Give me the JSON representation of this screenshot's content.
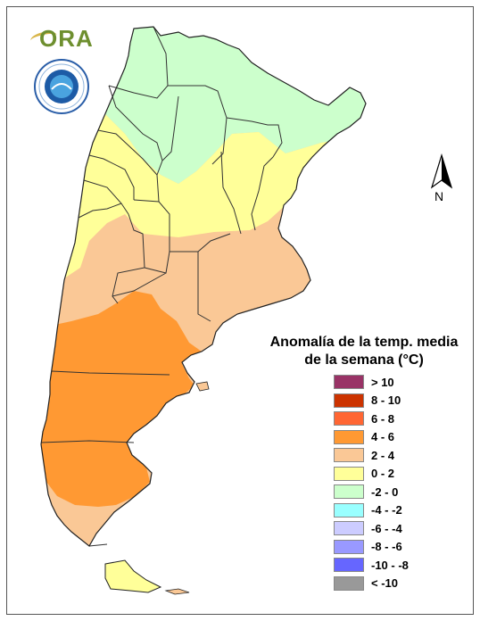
{
  "logo": {
    "text": "ORA"
  },
  "seal": {
    "text": "SERVICIO METEOROLÓGICO NACIONAL • ARGENTINA"
  },
  "north_arrow": {
    "label": "N"
  },
  "legend": {
    "title_line1": "Anomalía de la temp. media",
    "title_line2": "de la semana (°C)",
    "items": [
      {
        "label": "> 10",
        "color": "#993366"
      },
      {
        "label": "8 - 10",
        "color": "#cc3300"
      },
      {
        "label": "6 - 8",
        "color": "#ff6633"
      },
      {
        "label": "4 - 6",
        "color": "#ff9933"
      },
      {
        "label": "2 - 4",
        "color": "#fac896"
      },
      {
        "label": "0 - 2",
        "color": "#ffff99"
      },
      {
        "label": "-2 - 0",
        "color": "#ccffcc"
      },
      {
        "label": "-4 - -2",
        "color": "#99ffff"
      },
      {
        "label": "-6 - -4",
        "color": "#ccccff"
      },
      {
        "label": "-8 - -6",
        "color": "#9999ff"
      },
      {
        "label": "-10 - -8",
        "color": "#6666ff"
      },
      {
        "label": "< -10",
        "color": "#999999"
      }
    ]
  }
}
